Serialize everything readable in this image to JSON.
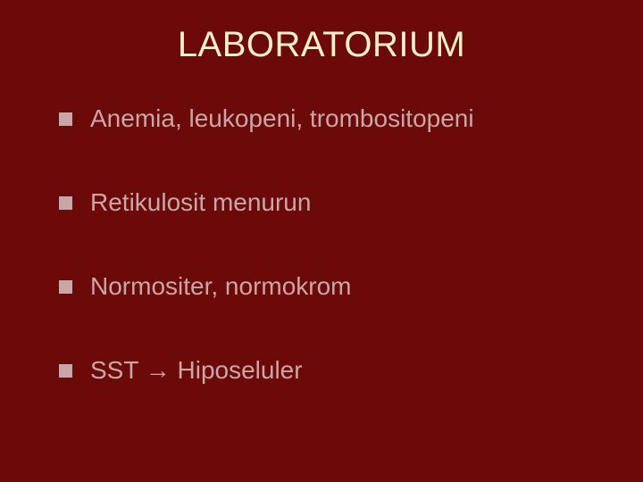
{
  "slide": {
    "title": "LABORATORIUM",
    "title_color": "#f7efc7",
    "title_fontsize": 40,
    "background_color": "#6c0a0a",
    "bullet_color": "#cba6a6",
    "text_color": "#cba6a6",
    "item_fontsize": 28,
    "items": [
      {
        "text": "Anemia, leukopeni, trombositopeni"
      },
      {
        "text": "Retikulosit menurun"
      },
      {
        "text": "Normositer, normokrom"
      },
      {
        "text": "SST → Hiposeluler"
      }
    ]
  }
}
